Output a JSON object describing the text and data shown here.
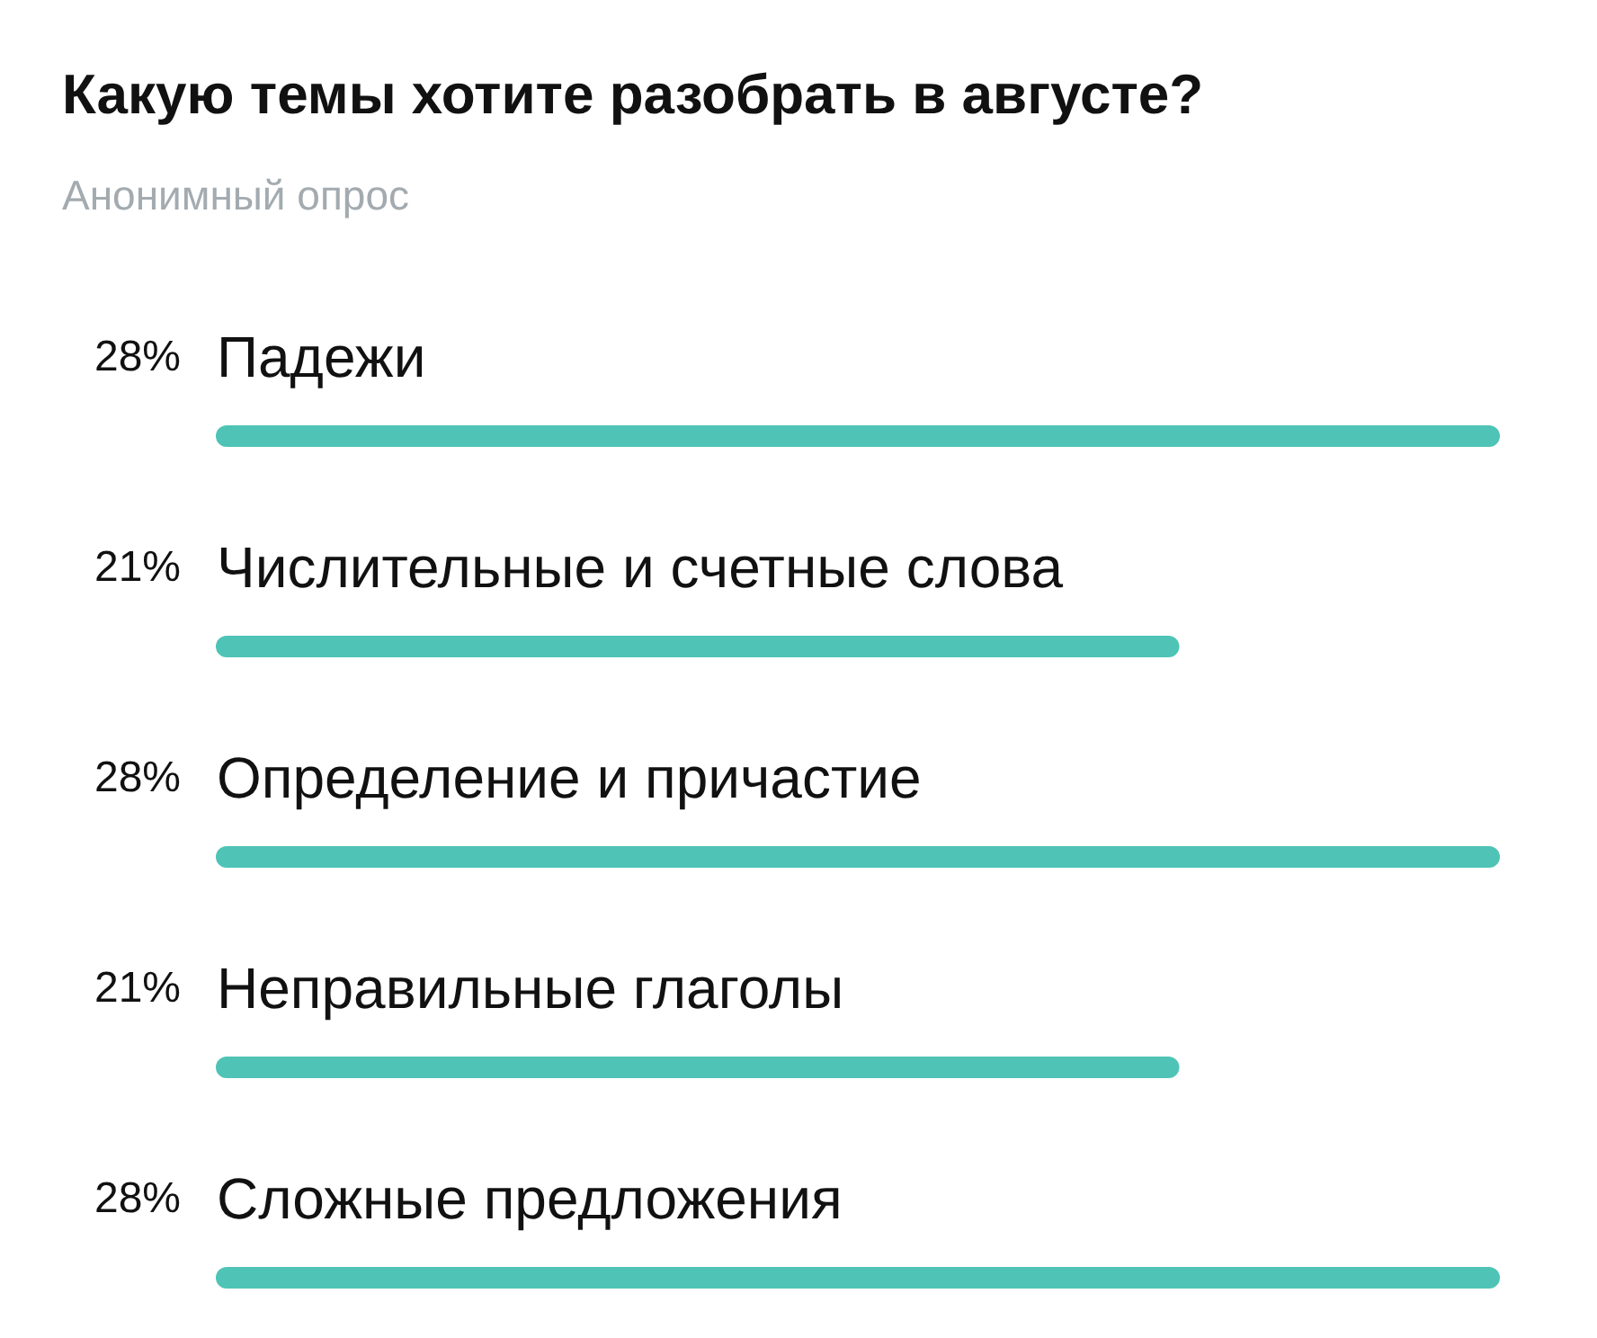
{
  "chart_data": {
    "type": "bar",
    "orientation": "horizontal",
    "title": "Какую темы хотите разобрать в августе?",
    "subtitle": "Анонимный опрос",
    "categories": [
      "Падежи",
      "Числительные и счетные слова",
      "Определение и причастие",
      "Неправильные глаголы",
      "Сложные предложения"
    ],
    "values": [
      28,
      21,
      28,
      21,
      28
    ],
    "value_labels": [
      "28%",
      "21%",
      "28%",
      "21%",
      "28%"
    ],
    "color": "#4fc4b6"
  }
}
